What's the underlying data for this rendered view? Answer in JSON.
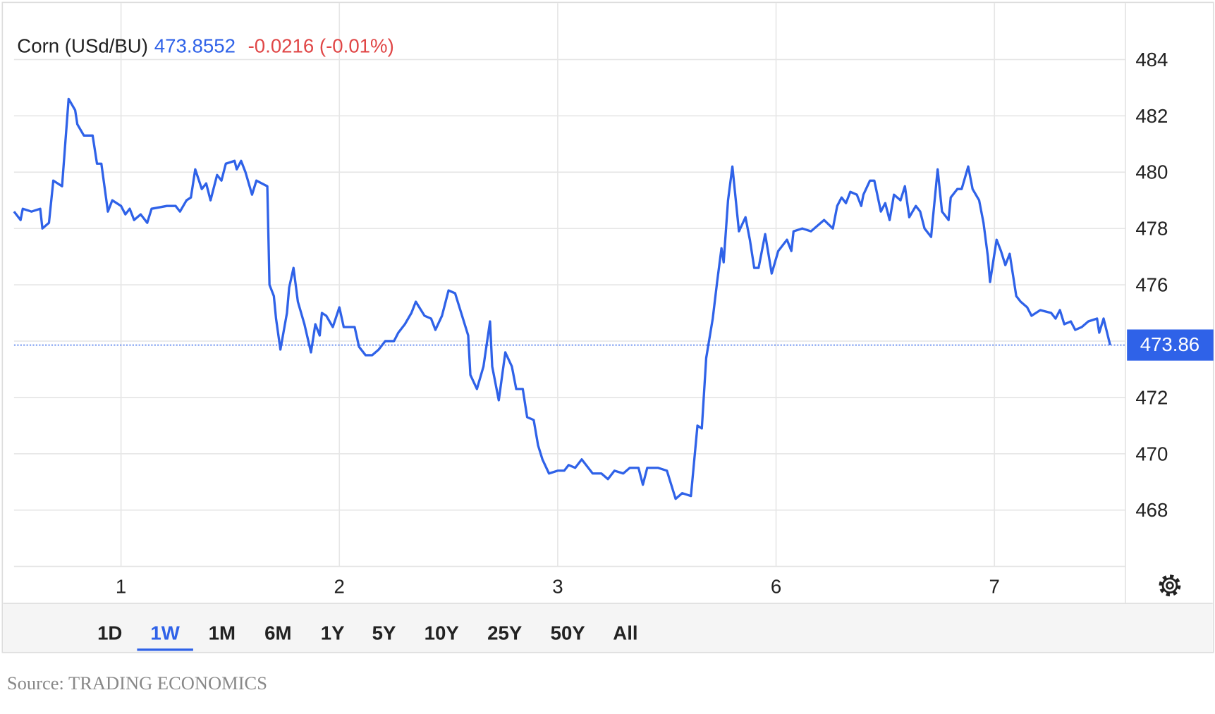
{
  "chart_data": {
    "type": "line",
    "title": "Corn (USd/BU)",
    "price": "473.8552",
    "change": "-0.0216 (-0.01%)",
    "x": [
      0.51,
      0.54,
      0.55,
      0.59,
      0.63,
      0.64,
      0.67,
      0.69,
      0.73,
      0.76,
      0.79,
      0.8,
      0.83,
      0.87,
      0.89,
      0.91,
      0.94,
      0.96,
      1.0,
      1.02,
      1.04,
      1.06,
      1.09,
      1.12,
      1.14,
      1.21,
      1.25,
      1.27,
      1.3,
      1.32,
      1.34,
      1.37,
      1.39,
      1.41,
      1.44,
      1.46,
      1.48,
      1.52,
      1.53,
      1.55,
      1.57,
      1.6,
      1.62,
      1.67,
      1.68,
      1.7,
      1.71,
      1.73,
      1.76,
      1.77,
      1.79,
      1.81,
      1.84,
      1.87,
      1.89,
      1.91,
      1.92,
      1.94,
      1.97,
      2.0,
      2.02,
      2.07,
      2.09,
      2.12,
      2.15,
      2.18,
      2.21,
      2.25,
      2.27,
      2.3,
      2.33,
      2.35,
      2.39,
      2.42,
      2.44,
      2.47,
      2.5,
      2.53,
      2.55,
      2.59,
      2.6,
      2.63,
      2.66,
      2.69,
      2.7,
      2.73,
      2.76,
      2.79,
      2.81,
      2.84,
      2.86,
      2.89,
      2.91,
      2.93,
      2.96,
      3.0,
      3.03,
      3.05,
      3.08,
      3.11,
      3.14,
      3.16,
      3.2,
      3.23,
      3.26,
      3.3,
      3.33,
      3.37,
      3.39,
      3.41,
      3.46,
      3.5,
      3.52,
      3.54,
      3.57,
      3.61,
      3.64,
      3.66,
      3.68,
      3.71,
      3.73,
      3.75,
      3.76,
      3.78,
      3.8,
      3.83,
      3.86,
      3.88,
      3.9,
      3.92,
      3.95,
      3.98,
      4.01,
      4.05,
      4.07,
      4.08,
      4.12,
      4.16,
      4.19,
      4.22,
      4.26,
      4.28,
      4.3,
      4.32,
      4.34,
      4.37,
      4.39,
      4.4,
      4.43,
      4.45,
      4.48,
      4.5,
      4.52,
      4.54,
      4.57,
      4.59,
      4.61,
      4.64,
      4.66,
      4.68,
      4.71,
      4.74,
      4.76,
      4.79,
      4.8,
      4.83,
      4.85,
      4.88,
      4.9,
      4.93,
      4.95,
      4.97,
      4.98,
      5.01,
      5.03,
      5.05,
      5.07,
      5.1,
      5.12,
      5.15,
      5.17,
      5.21,
      5.26,
      5.28,
      5.3,
      5.32,
      5.35,
      5.37,
      5.4,
      5.43,
      5.47,
      5.48,
      5.5,
      5.53
    ],
    "series": [
      {
        "color": "#2f62e8",
        "values": [
          478.6,
          478.3,
          478.7,
          478.6,
          478.7,
          478.0,
          478.2,
          479.7,
          479.5,
          482.6,
          482.2,
          481.7,
          481.3,
          481.3,
          480.3,
          480.3,
          478.6,
          479.0,
          478.8,
          478.5,
          478.7,
          478.3,
          478.5,
          478.2,
          478.7,
          478.8,
          478.8,
          478.6,
          479.0,
          479.1,
          480.1,
          479.4,
          479.6,
          479.0,
          479.9,
          479.7,
          480.3,
          480.4,
          480.1,
          480.4,
          480.0,
          479.2,
          479.7,
          479.5,
          476.0,
          475.6,
          474.8,
          473.7,
          475.0,
          475.9,
          476.6,
          475.4,
          474.6,
          473.6,
          474.6,
          474.2,
          475.0,
          474.9,
          474.5,
          475.2,
          474.5,
          474.5,
          473.8,
          473.5,
          473.5,
          473.7,
          474.0,
          474.0,
          474.3,
          474.6,
          475.0,
          475.4,
          474.9,
          474.8,
          474.4,
          474.9,
          475.8,
          475.7,
          475.2,
          474.2,
          472.8,
          472.3,
          473.1,
          474.7,
          473.1,
          471.9,
          473.6,
          473.1,
          472.3,
          472.3,
          471.3,
          471.2,
          470.3,
          469.8,
          469.3,
          469.4,
          469.4,
          469.6,
          469.5,
          469.8,
          469.5,
          469.3,
          469.3,
          469.1,
          469.4,
          469.3,
          469.5,
          469.5,
          468.9,
          469.5,
          469.5,
          469.4,
          468.9,
          468.4,
          468.6,
          468.5,
          471.0,
          470.9,
          473.4,
          474.8,
          476.1,
          477.3,
          476.8,
          479.0,
          480.2,
          477.9,
          478.4,
          477.6,
          476.6,
          476.6,
          477.8,
          476.4,
          477.2,
          477.6,
          477.2,
          477.9,
          478.0,
          477.9,
          478.1,
          478.3,
          478.0,
          478.8,
          479.1,
          478.9,
          479.3,
          479.2,
          478.8,
          479.2,
          479.7,
          479.7,
          478.6,
          478.9,
          478.3,
          479.2,
          479.0,
          479.5,
          478.4,
          478.8,
          478.6,
          478.0,
          477.7,
          480.1,
          478.6,
          478.3,
          479.1,
          479.4,
          479.4,
          480.2,
          479.4,
          479.0,
          478.2,
          477.0,
          476.1,
          477.6,
          477.2,
          476.7,
          477.1,
          475.6,
          475.4,
          475.2,
          474.9,
          475.1,
          475.0,
          474.8,
          475.1,
          474.6,
          474.7,
          474.4,
          474.5,
          474.7,
          474.8,
          474.3,
          474.8,
          473.86
        ]
      }
    ],
    "last_value": 473.86,
    "xlim": [
      0.51,
      5.6
    ],
    "xticks": [
      1,
      2,
      3,
      {
        "value": 4,
        "label": "6"
      },
      {
        "value": 5,
        "label": "7"
      }
    ],
    "ylim": [
      466,
      486
    ],
    "yticks": [
      468,
      470,
      472,
      474,
      476,
      478,
      480,
      482,
      484
    ],
    "grid": true
  },
  "ranges": [
    "1D",
    "1W",
    "1M",
    "6M",
    "1Y",
    "5Y",
    "10Y",
    "25Y",
    "50Y",
    "All"
  ],
  "active_range": 1,
  "source": "Source: TRADING ECONOMICS"
}
